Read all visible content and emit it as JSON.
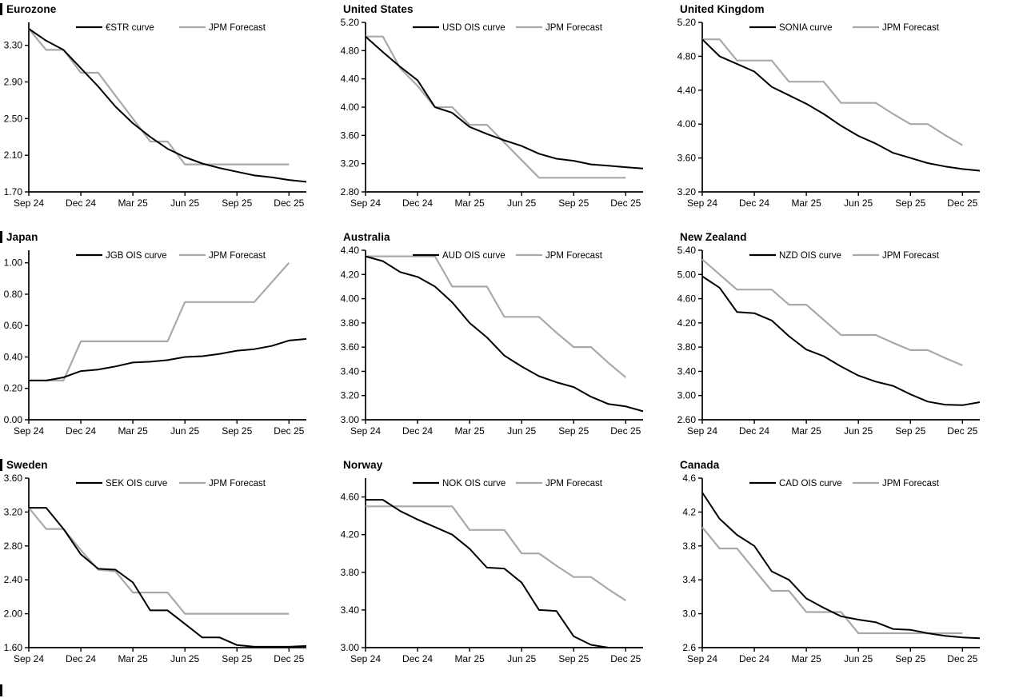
{
  "colors": {
    "curve": "#000000",
    "forecast": "#a9a9a9",
    "axis": "#000000",
    "text": "#000000",
    "background": "#ffffff"
  },
  "x_axis": {
    "start_month": "Sep 24",
    "tick_positions": [
      0,
      3,
      6,
      9,
      12,
      15
    ],
    "tick_labels": [
      "Sep 24",
      "Dec 24",
      "Mar 25",
      "Jun 25",
      "Sep 25",
      "Dec 25"
    ]
  },
  "chart_data": [
    {
      "type": "line",
      "title": "Eurozone",
      "section_bar": true,
      "ylim": [
        1.7,
        3.55
      ],
      "yticks": [
        1.7,
        2.1,
        2.5,
        2.9,
        3.3
      ],
      "y_decimals": 2,
      "legend_position": "top-inside",
      "grid": false,
      "series": [
        {
          "name": "€STR curve",
          "role": "curve",
          "values": [
            3.48,
            3.35,
            3.25,
            3.05,
            2.85,
            2.63,
            2.45,
            2.3,
            2.17,
            2.08,
            2.01,
            1.96,
            1.92,
            1.88,
            1.86,
            1.83,
            1.81
          ]
        },
        {
          "name": "JPM Forecast",
          "role": "forecast",
          "values": [
            3.48,
            3.25,
            3.25,
            3.0,
            3.0,
            2.75,
            2.5,
            2.25,
            2.25,
            2.0,
            2.0,
            2.0,
            2.0,
            2.0,
            2.0,
            2.0
          ]
        }
      ]
    },
    {
      "type": "line",
      "title": "United States",
      "section_bar": false,
      "ylim": [
        2.8,
        5.2
      ],
      "yticks": [
        2.8,
        3.2,
        3.6,
        4.0,
        4.4,
        4.8,
        5.2
      ],
      "y_decimals": 2,
      "legend_position": "top-inside",
      "grid": false,
      "series": [
        {
          "name": "USD OIS curve",
          "role": "curve",
          "values": [
            5.0,
            4.78,
            4.57,
            4.38,
            4.0,
            3.92,
            3.72,
            3.62,
            3.53,
            3.45,
            3.34,
            3.27,
            3.24,
            3.19,
            3.17,
            3.15,
            3.13
          ]
        },
        {
          "name": "JPM Forecast",
          "role": "forecast",
          "values": [
            5.0,
            5.0,
            4.55,
            4.3,
            4.0,
            4.0,
            3.75,
            3.75,
            3.5,
            3.25,
            3.0,
            3.0,
            3.0,
            3.0,
            3.0,
            3.0
          ]
        }
      ]
    },
    {
      "type": "line",
      "title": "United Kingdom",
      "section_bar": false,
      "ylim": [
        3.2,
        5.2
      ],
      "yticks": [
        3.2,
        3.6,
        4.0,
        4.4,
        4.8,
        5.2
      ],
      "y_decimals": 2,
      "legend_position": "top-inside",
      "grid": false,
      "series": [
        {
          "name": "SONIA curve",
          "role": "curve",
          "values": [
            5.0,
            4.8,
            4.71,
            4.62,
            4.44,
            4.34,
            4.24,
            4.12,
            3.98,
            3.86,
            3.77,
            3.66,
            3.6,
            3.54,
            3.5,
            3.47,
            3.45
          ]
        },
        {
          "name": "JPM Forecast",
          "role": "forecast",
          "values": [
            5.0,
            5.0,
            4.75,
            4.75,
            4.75,
            4.5,
            4.5,
            4.5,
            4.25,
            4.25,
            4.25,
            4.12,
            4.0,
            4.0,
            3.87,
            3.75
          ]
        }
      ]
    },
    {
      "type": "line",
      "title": "Japan",
      "section_bar": true,
      "ylim": [
        0.0,
        1.08
      ],
      "yticks": [
        0.0,
        0.2,
        0.4,
        0.6,
        0.8,
        1.0
      ],
      "y_decimals": 2,
      "legend_position": "top-inside",
      "grid": false,
      "series": [
        {
          "name": "JGB OIS curve",
          "role": "curve",
          "values": [
            0.25,
            0.25,
            0.27,
            0.31,
            0.32,
            0.34,
            0.365,
            0.37,
            0.38,
            0.4,
            0.405,
            0.42,
            0.44,
            0.45,
            0.47,
            0.505,
            0.515
          ]
        },
        {
          "name": "JPM Forecast",
          "role": "forecast",
          "values": [
            0.25,
            0.25,
            0.25,
            0.5,
            0.5,
            0.5,
            0.5,
            0.5,
            0.5,
            0.75,
            0.75,
            0.75,
            0.75,
            0.75,
            0.875,
            1.0
          ]
        }
      ]
    },
    {
      "type": "line",
      "title": "Australia",
      "section_bar": false,
      "ylim": [
        3.0,
        4.4
      ],
      "yticks": [
        3.0,
        3.2,
        3.4,
        3.6,
        3.8,
        4.0,
        4.2,
        4.4
      ],
      "y_decimals": 2,
      "legend_position": "top-inside",
      "grid": false,
      "series": [
        {
          "name": "AUD OIS curve",
          "role": "curve",
          "values": [
            4.35,
            4.31,
            4.22,
            4.18,
            4.1,
            3.97,
            3.8,
            3.68,
            3.53,
            3.44,
            3.36,
            3.31,
            3.27,
            3.19,
            3.13,
            3.11,
            3.07
          ]
        },
        {
          "name": "JPM Forecast",
          "role": "forecast",
          "values": [
            4.35,
            4.35,
            4.35,
            4.35,
            4.35,
            4.1,
            4.1,
            4.1,
            3.85,
            3.85,
            3.85,
            3.72,
            3.6,
            3.6,
            3.47,
            3.35
          ]
        }
      ]
    },
    {
      "type": "line",
      "title": "New Zealand",
      "section_bar": false,
      "ylim": [
        2.6,
        5.4
      ],
      "yticks": [
        2.6,
        3.0,
        3.4,
        3.8,
        4.2,
        4.6,
        5.0,
        5.4
      ],
      "y_decimals": 2,
      "legend_position": "top-inside",
      "grid": false,
      "series": [
        {
          "name": "NZD OIS curve",
          "role": "curve",
          "values": [
            4.97,
            4.78,
            4.38,
            4.36,
            4.24,
            3.98,
            3.76,
            3.65,
            3.48,
            3.33,
            3.23,
            3.16,
            3.02,
            2.9,
            2.85,
            2.84,
            2.89
          ]
        },
        {
          "name": "JPM Forecast",
          "role": "forecast",
          "values": [
            5.25,
            5.0,
            4.75,
            4.75,
            4.75,
            4.5,
            4.5,
            4.25,
            4.0,
            4.0,
            4.0,
            3.87,
            3.75,
            3.75,
            3.62,
            3.5
          ]
        }
      ]
    },
    {
      "type": "line",
      "title": "Sweden",
      "section_bar": true,
      "ylim": [
        1.6,
        3.6
      ],
      "yticks": [
        1.6,
        2.0,
        2.4,
        2.8,
        3.2,
        3.6
      ],
      "y_decimals": 2,
      "legend_position": "top-inside",
      "grid": false,
      "series": [
        {
          "name": "SEK OIS curve",
          "role": "curve",
          "values": [
            3.25,
            3.25,
            3.0,
            2.7,
            2.53,
            2.52,
            2.37,
            2.04,
            2.04,
            1.88,
            1.72,
            1.72,
            1.63,
            1.61,
            1.61,
            1.61,
            1.62
          ]
        },
        {
          "name": "JPM Forecast",
          "role": "forecast",
          "values": [
            3.25,
            3.0,
            3.0,
            2.75,
            2.52,
            2.5,
            2.25,
            2.25,
            2.25,
            2.0,
            2.0,
            2.0,
            2.0,
            2.0,
            2.0,
            2.0
          ]
        }
      ]
    },
    {
      "type": "line",
      "title": "Norway",
      "section_bar": false,
      "ylim": [
        3.0,
        4.8
      ],
      "yticks": [
        3.0,
        3.4,
        3.8,
        4.2,
        4.6
      ],
      "y_decimals": 2,
      "legend_position": "top-inside",
      "grid": false,
      "series": [
        {
          "name": "NOK OIS curve",
          "role": "curve",
          "values": [
            4.57,
            4.57,
            4.45,
            4.36,
            4.28,
            4.2,
            4.05,
            3.85,
            3.84,
            3.69,
            3.4,
            3.39,
            3.12,
            3.03,
            3.0,
            3.0,
            3.0
          ]
        },
        {
          "name": "JPM Forecast",
          "role": "forecast",
          "values": [
            4.5,
            4.5,
            4.5,
            4.5,
            4.5,
            4.5,
            4.25,
            4.25,
            4.25,
            4.0,
            4.0,
            3.87,
            3.75,
            3.75,
            3.62,
            3.5
          ]
        }
      ]
    },
    {
      "type": "line",
      "title": "Canada",
      "section_bar": false,
      "ylim": [
        2.6,
        4.6
      ],
      "yticks": [
        2.6,
        3.0,
        3.4,
        3.8,
        4.2,
        4.6
      ],
      "y_decimals": 1,
      "legend_position": "top-inside",
      "grid": false,
      "series": [
        {
          "name": "CAD OIS curve",
          "role": "curve",
          "values": [
            4.43,
            4.12,
            3.93,
            3.8,
            3.5,
            3.4,
            3.18,
            3.07,
            2.97,
            2.93,
            2.9,
            2.82,
            2.81,
            2.77,
            2.74,
            2.72,
            2.71
          ]
        },
        {
          "name": "JPM Forecast",
          "role": "forecast",
          "values": [
            4.02,
            3.77,
            3.77,
            3.52,
            3.27,
            3.27,
            3.02,
            3.02,
            3.02,
            2.77,
            2.77,
            2.77,
            2.77,
            2.77,
            2.77,
            2.77
          ]
        }
      ]
    }
  ]
}
